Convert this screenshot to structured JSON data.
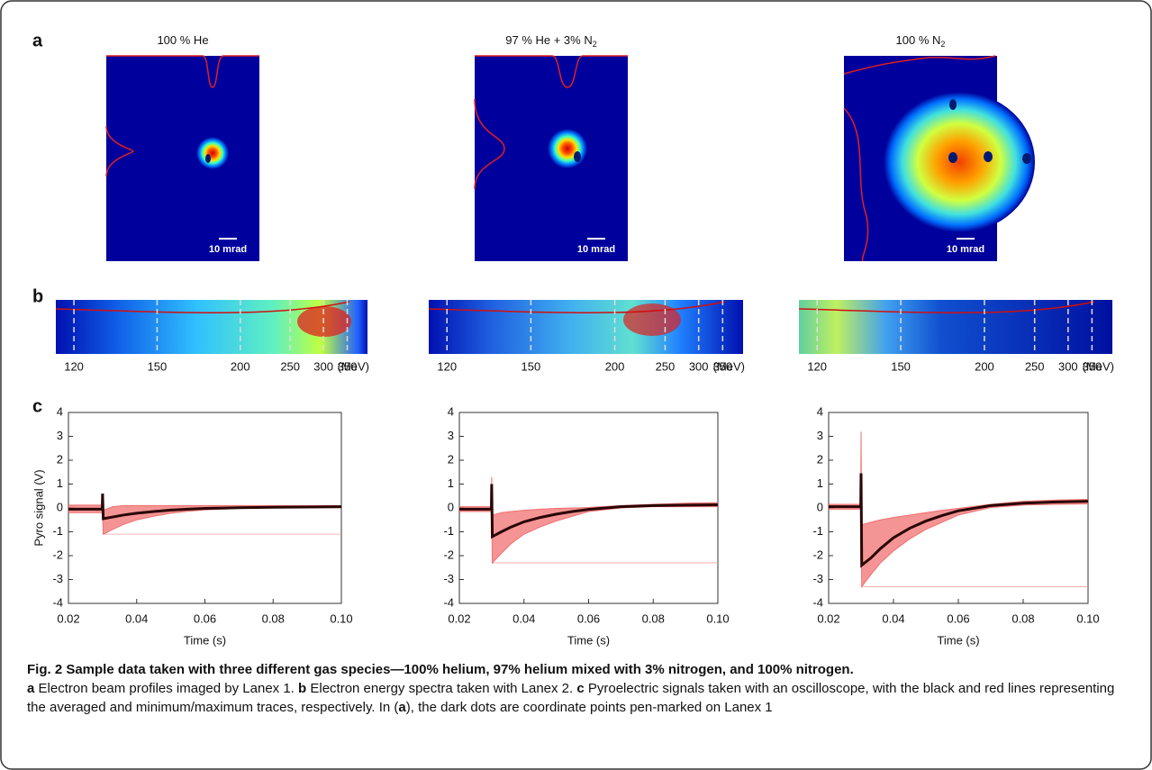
{
  "figure": {
    "panel_labels": [
      "a",
      "b",
      "c"
    ],
    "caption": {
      "title": "Fig. 2 Sample data taken with three different gas species—100% helium, 97% helium mixed with 3% nitrogen, and 100% nitrogen.",
      "segments": [
        {
          "text": "a",
          "bold": true
        },
        {
          "text": " Electron beam profiles imaged by Lanex 1. ",
          "bold": false
        },
        {
          "text": "b",
          "bold": true
        },
        {
          "text": " Electron energy spectra taken with Lanex 2. ",
          "bold": false
        },
        {
          "text": "c",
          "bold": true
        },
        {
          "text": " Pyroelectric signals taken with an oscilloscope, with the black and red lines representing the averaged and minimum/maximum traces, respectively. In (",
          "bold": false
        },
        {
          "text": "a",
          "bold": true
        },
        {
          "text": "), the dark dots are coordinate points pen-marked on Lanex 1",
          "bold": false
        }
      ]
    }
  },
  "chart_data": [
    {
      "type": "image",
      "title": "100 % He",
      "title_sub": null,
      "scale_bar": "10 mrad"
    },
    {
      "type": "image",
      "title": "97 % He + 3% N",
      "title_sub": "2",
      "scale_bar": "10 mrad"
    },
    {
      "type": "image",
      "title": "100 % N",
      "title_sub": "2",
      "scale_bar": "10 mrad"
    },
    {
      "type": "spectrum",
      "scale": "reciprocal",
      "xlim": [
        115,
        408
      ],
      "xticks": [
        120,
        150,
        200,
        250,
        300,
        350
      ],
      "xlabel": "(MeV)"
    },
    {
      "type": "spectrum",
      "scale": "reciprocal",
      "xlim": [
        115,
        408
      ],
      "xticks": [
        120,
        150,
        200,
        250,
        300,
        350
      ],
      "xlabel": "(MeV)"
    },
    {
      "type": "spectrum",
      "scale": "reciprocal",
      "xlim": [
        115,
        408
      ],
      "xticks": [
        120,
        150,
        200,
        250,
        300,
        350
      ],
      "xlabel": "(MeV)"
    },
    {
      "type": "line",
      "xlabel": "Time (s)",
      "ylabel": "Pyro signal (V)",
      "xlim": [
        0.02,
        0.1
      ],
      "xticks": [
        0.02,
        0.04,
        0.06,
        0.08,
        {
          "value": 0.1,
          "label": "0.10"
        }
      ],
      "ylim": [
        -4,
        4
      ],
      "yticks": [
        -4,
        -3,
        -2,
        -1,
        0,
        1,
        2,
        3,
        4
      ],
      "hline": -1.1,
      "x": [
        0.02,
        0.025,
        0.0299,
        0.03,
        0.0302,
        0.033,
        0.036,
        0.04,
        0.045,
        0.05,
        0.055,
        0.06,
        0.07,
        0.08,
        0.09,
        0.1
      ],
      "series": [
        {
          "color": "#f07070",
          "values": [
            0.12,
            0.12,
            0.12,
            0.6,
            -0.1,
            0.05,
            0.1,
            0.1,
            0.1,
            0.1,
            0.1,
            0.1,
            0.1,
            0.1,
            0.1,
            0.1
          ]
        },
        {
          "color": "#f07070",
          "values": [
            -0.2,
            -0.2,
            -0.2,
            -0.2,
            -1.1,
            -0.9,
            -0.7,
            -0.5,
            -0.35,
            -0.22,
            -0.14,
            -0.08,
            -0.02,
            0.0,
            0.01,
            0.01
          ]
        },
        {
          "color": "#2a0606",
          "values": [
            -0.05,
            -0.05,
            -0.05,
            0.6,
            -0.45,
            -0.38,
            -0.3,
            -0.22,
            -0.15,
            -0.09,
            -0.05,
            -0.02,
            0.01,
            0.03,
            0.04,
            0.05
          ]
        }
      ]
    },
    {
      "type": "line",
      "xlabel": "Time (s)",
      "xlim": [
        0.02,
        0.1
      ],
      "xticks": [
        0.02,
        0.04,
        0.06,
        0.08,
        {
          "value": 0.1,
          "label": "0.10"
        }
      ],
      "ylim": [
        -4,
        4
      ],
      "yticks": [
        -4,
        -3,
        -2,
        -1,
        0,
        1,
        2,
        3,
        4
      ],
      "hline": -2.3,
      "x": [
        0.02,
        0.025,
        0.0299,
        0.03,
        0.0302,
        0.033,
        0.036,
        0.04,
        0.045,
        0.05,
        0.055,
        0.06,
        0.07,
        0.08,
        0.09,
        0.1
      ],
      "series": [
        {
          "color": "#f07070",
          "values": [
            0.05,
            0.05,
            0.05,
            1.3,
            -0.3,
            -0.2,
            -0.15,
            -0.1,
            -0.05,
            -0.02,
            0.0,
            0.02,
            0.1,
            0.15,
            0.2,
            0.22
          ]
        },
        {
          "color": "#f07070",
          "values": [
            -0.15,
            -0.15,
            -0.15,
            -0.15,
            -2.3,
            -1.9,
            -1.5,
            -1.1,
            -0.8,
            -0.55,
            -0.35,
            -0.15,
            0.0,
            0.05,
            0.05,
            0.05
          ]
        },
        {
          "color": "#2a0606",
          "values": [
            -0.05,
            -0.05,
            -0.05,
            1.0,
            -1.2,
            -1.0,
            -0.8,
            -0.58,
            -0.4,
            -0.26,
            -0.15,
            -0.06,
            0.05,
            0.1,
            0.12,
            0.13
          ]
        }
      ]
    },
    {
      "type": "line",
      "xlabel": "Time (s)",
      "xlim": [
        0.02,
        0.1
      ],
      "xticks": [
        0.02,
        0.04,
        0.06,
        0.08,
        {
          "value": 0.1,
          "label": "0.10"
        }
      ],
      "ylim": [
        -4,
        4
      ],
      "yticks": [
        -4,
        -3,
        -2,
        -1,
        0,
        1,
        2,
        3,
        4
      ],
      "hline": -3.3,
      "x": [
        0.02,
        0.025,
        0.0299,
        0.03,
        0.0302,
        0.033,
        0.036,
        0.04,
        0.045,
        0.05,
        0.055,
        0.06,
        0.07,
        0.08,
        0.09,
        0.1
      ],
      "series": [
        {
          "color": "#f07070",
          "values": [
            0.15,
            0.15,
            0.15,
            3.2,
            -0.7,
            -0.6,
            -0.5,
            -0.4,
            -0.3,
            -0.2,
            -0.1,
            -0.02,
            0.15,
            0.28,
            0.33,
            0.36
          ]
        },
        {
          "color": "#f07070",
          "values": [
            -0.05,
            -0.05,
            -0.05,
            -0.05,
            -3.3,
            -2.8,
            -2.3,
            -1.8,
            -1.3,
            -0.9,
            -0.6,
            -0.3,
            0.02,
            0.12,
            0.15,
            0.17
          ]
        },
        {
          "color": "#2a0606",
          "values": [
            0.05,
            0.05,
            0.05,
            1.45,
            -2.4,
            -2.1,
            -1.7,
            -1.25,
            -0.85,
            -0.55,
            -0.32,
            -0.12,
            0.1,
            0.2,
            0.25,
            0.28
          ]
        }
      ]
    }
  ]
}
